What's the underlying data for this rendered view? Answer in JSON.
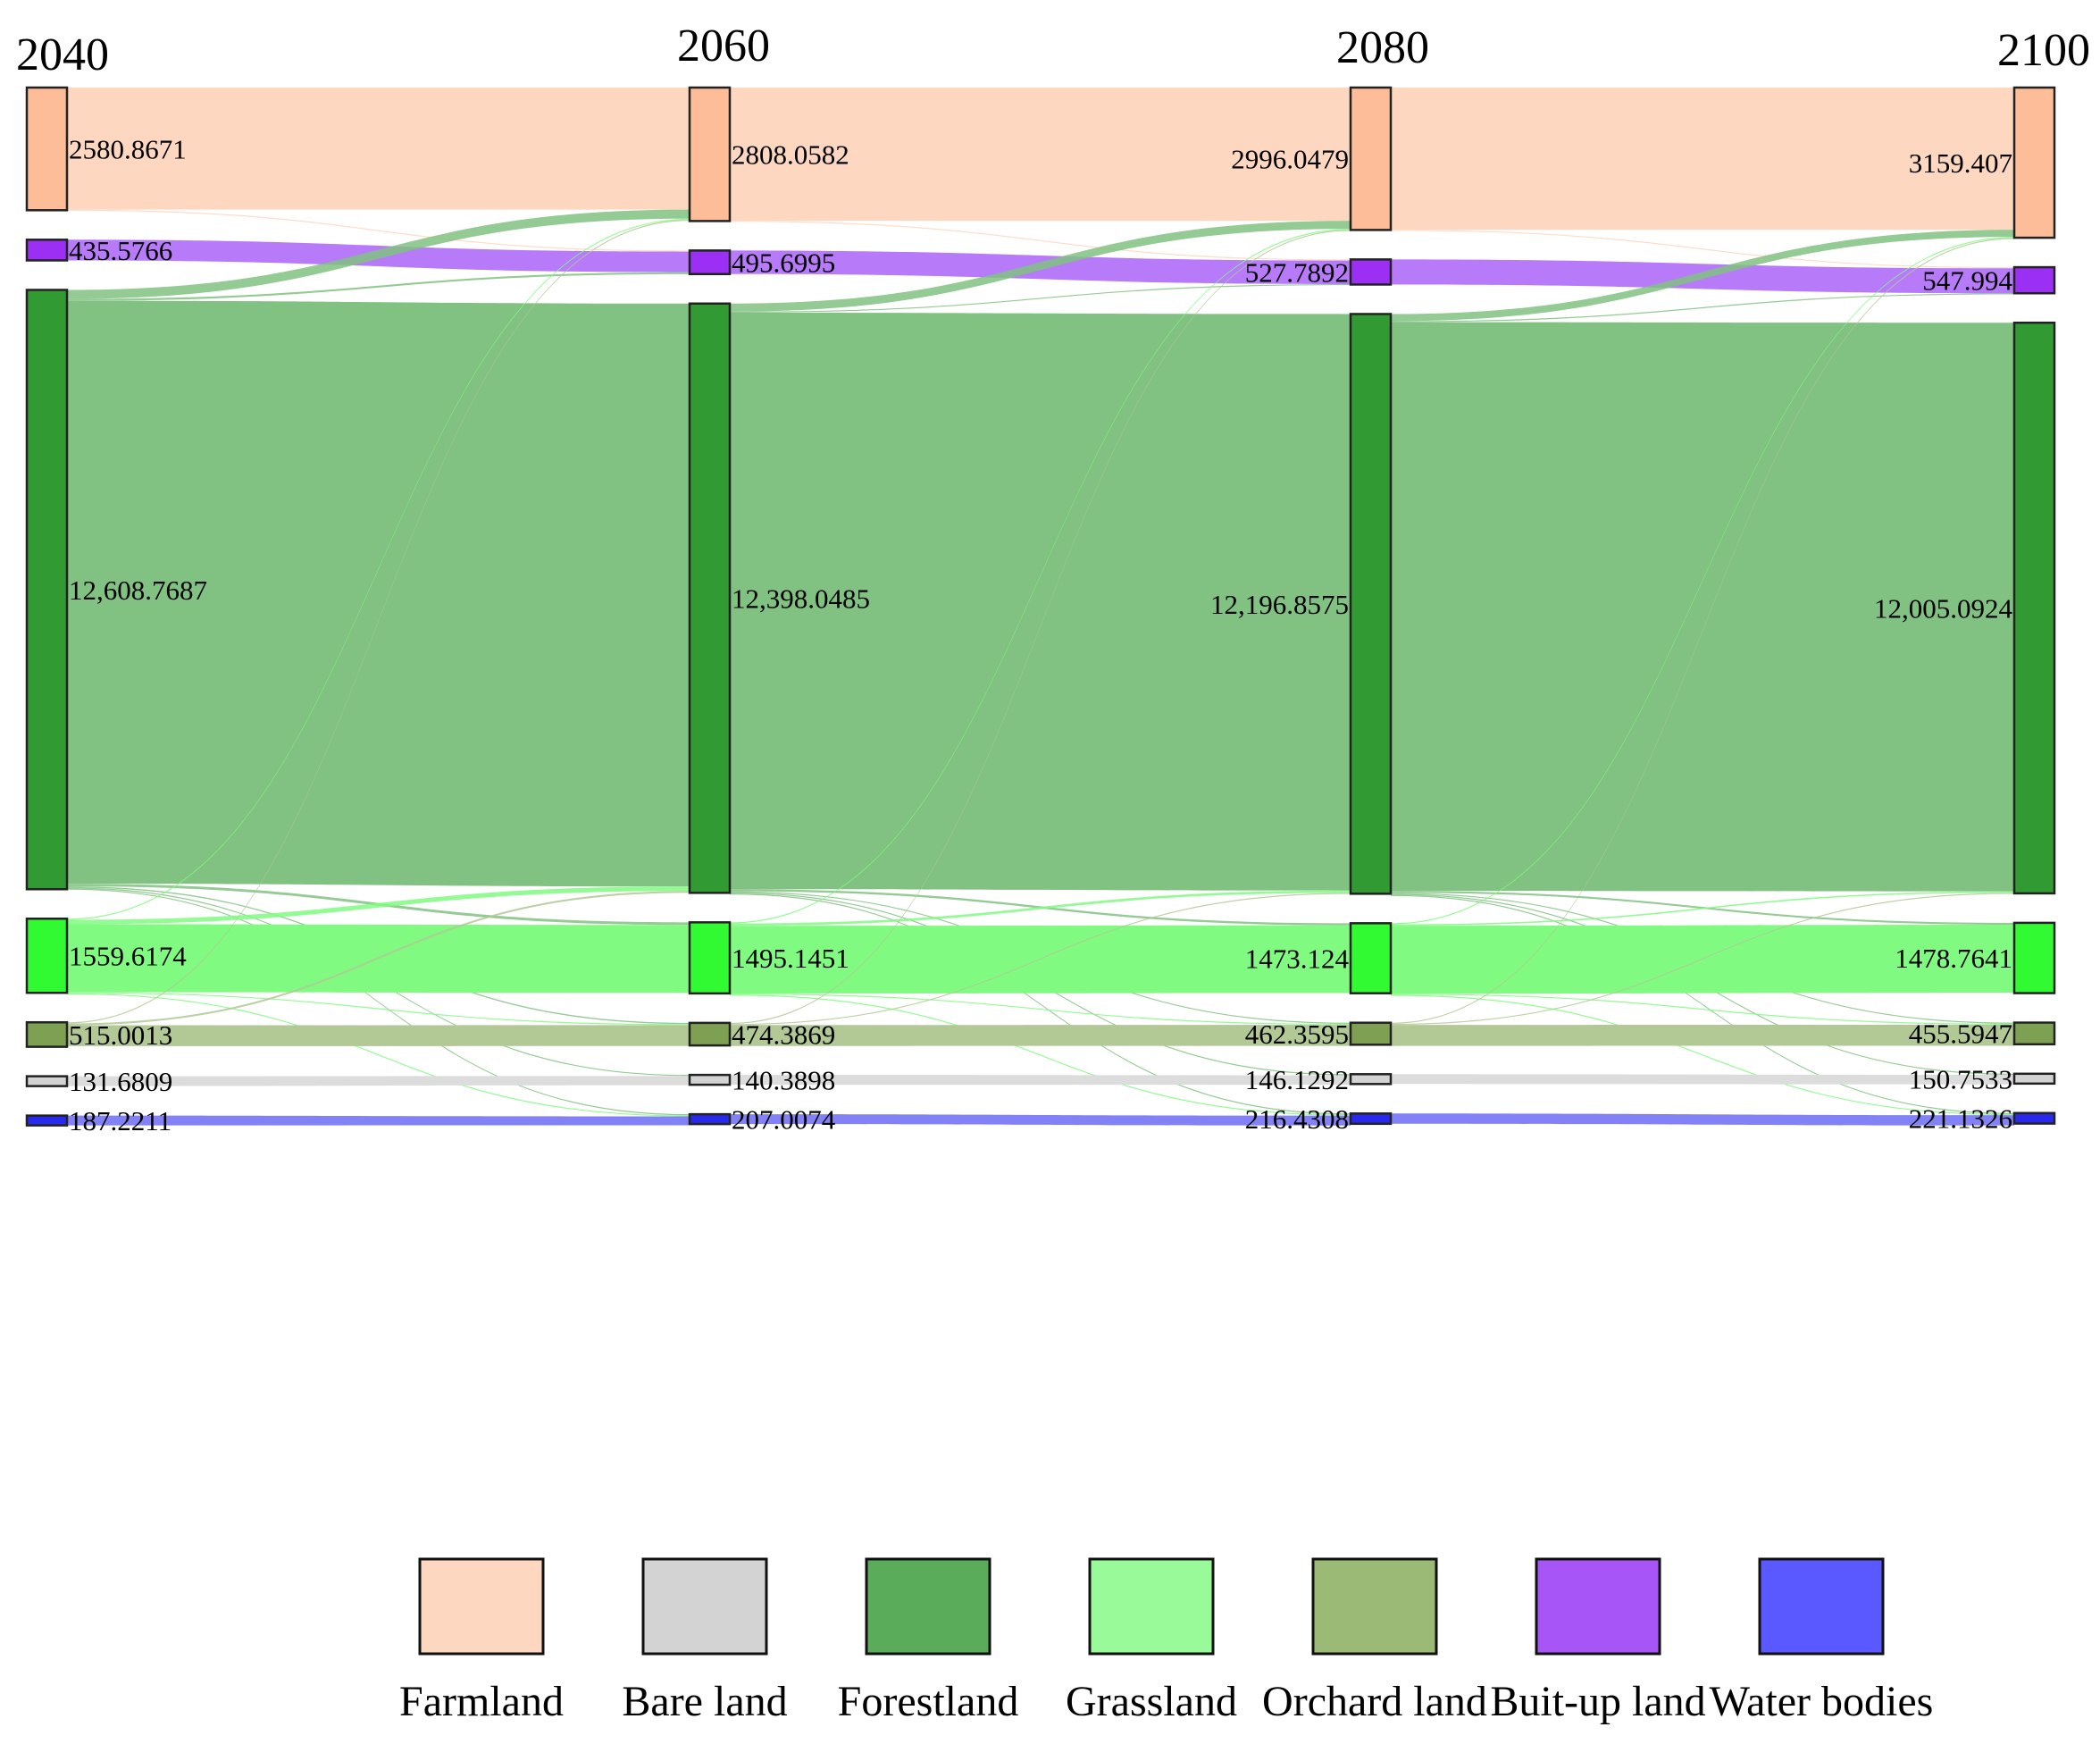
{
  "chart_data": {
    "type": "sankey",
    "title": "",
    "years": [
      "2040",
      "2060",
      "2080",
      "2100"
    ],
    "categories": [
      "Farmland",
      "Buit-up land",
      "Forestland",
      "Grassland",
      "Orchard land",
      "Bare land",
      "Water bodies"
    ],
    "node_values": {
      "Farmland": [
        2580.8671,
        2808.0582,
        2996.0479,
        3159.407
      ],
      "Buit-up land": [
        435.5766,
        495.6995,
        527.7892,
        547.994
      ],
      "Forestland": [
        12608.7687,
        12398.0485,
        12196.8575,
        12005.0924
      ],
      "Grassland": [
        1559.6174,
        1495.1451,
        1473.124,
        1478.7641
      ],
      "Orchard land": [
        515.0013,
        474.3869,
        462.3595,
        455.5947
      ],
      "Bare land": [
        131.6809,
        140.3898,
        146.1292,
        150.7533
      ],
      "Water bodies": [
        187.2211,
        207.0074,
        216.4308,
        221.1326
      ]
    },
    "node_labels": {
      "Farmland": [
        "2580.8671",
        "2808.0582",
        "2996.0479",
        "3159.407"
      ],
      "Buit-up land": [
        "435.5766",
        "495.6995",
        "527.7892",
        "547.994"
      ],
      "Forestland": [
        "12,608.7687",
        "12,398.0485",
        "12,196.8575",
        "12,005.0924"
      ],
      "Grassland": [
        "1559.6174",
        "1495.1451",
        "1473.124",
        "1478.7641"
      ],
      "Orchard land": [
        "515.0013",
        "474.3869",
        "462.3595",
        "455.5947"
      ],
      "Bare land": [
        "131.6809",
        "140.3898",
        "146.1292",
        "150.7533"
      ],
      "Water bodies": [
        "187.2211",
        "207.0074",
        "216.4308",
        "221.1326"
      ]
    },
    "transitions": [
      {
        "from": "Forestland",
        "to": "Farmland",
        "values": [
          190,
          170,
          150
        ]
      },
      {
        "from": "Grassland",
        "to": "Farmland",
        "values": [
          20,
          12,
          8
        ]
      },
      {
        "from": "Orchard land",
        "to": "Farmland",
        "values": [
          18,
          6,
          5
        ]
      },
      {
        "from": "Forestland",
        "to": "Buit-up land",
        "values": [
          40,
          22,
          13
        ]
      },
      {
        "from": "Farmland",
        "to": "Buit-up land",
        "values": [
          12,
          6,
          4
        ]
      },
      {
        "from": "Forestland",
        "to": "Grassland",
        "values": [
          55,
          45,
          40
        ]
      },
      {
        "from": "Grassland",
        "to": "Forestland",
        "values": [
          95,
          50,
          30
        ]
      },
      {
        "from": "Orchard land",
        "to": "Forestland",
        "values": [
          40,
          18,
          12
        ]
      },
      {
        "from": "Forestland",
        "to": "Orchard land",
        "values": [
          25,
          15,
          10
        ]
      },
      {
        "from": "Grassland",
        "to": "Orchard land",
        "values": [
          10,
          6,
          4
        ]
      },
      {
        "from": "Forestland",
        "to": "Water bodies",
        "values": [
          12,
          6,
          3
        ]
      },
      {
        "from": "Forestland",
        "to": "Bare land",
        "values": [
          6,
          4,
          3
        ]
      },
      {
        "from": "Grassland",
        "to": "Water bodies",
        "values": [
          5,
          3,
          2
        ]
      }
    ],
    "legend": [
      {
        "name": "Farmland",
        "color": "#fdd7c0"
      },
      {
        "name": "Bare land",
        "color": "#d3d3d3"
      },
      {
        "name": "Forestland",
        "color": "#5aab5a"
      },
      {
        "name": "Grassland",
        "color": "#99fa99"
      },
      {
        "name": "Orchard land",
        "color": "#9aba76"
      },
      {
        "name": "Buit-up land",
        "color": "#a855f7"
      },
      {
        "name": "Water bodies",
        "color": "#5959ff"
      }
    ],
    "node_colors": {
      "Farmland": "#fdbd98",
      "Buit-up land": "#9b30f4",
      "Forestland": "#329a32",
      "Grassland": "#32fa32",
      "Orchard land": "#7ea052",
      "Bare land": "#d3d3d3",
      "Water bodies": "#2929ee"
    },
    "link_colors": {
      "Farmland": "#fdd7c0",
      "Buit-up land": "#b77bf9",
      "Forestland": "#81c181",
      "Grassland": "#80fa80",
      "Orchard land": "#b2c895",
      "Bare land": "#dcdcdc",
      "Water bodies": "#8282f6"
    }
  }
}
